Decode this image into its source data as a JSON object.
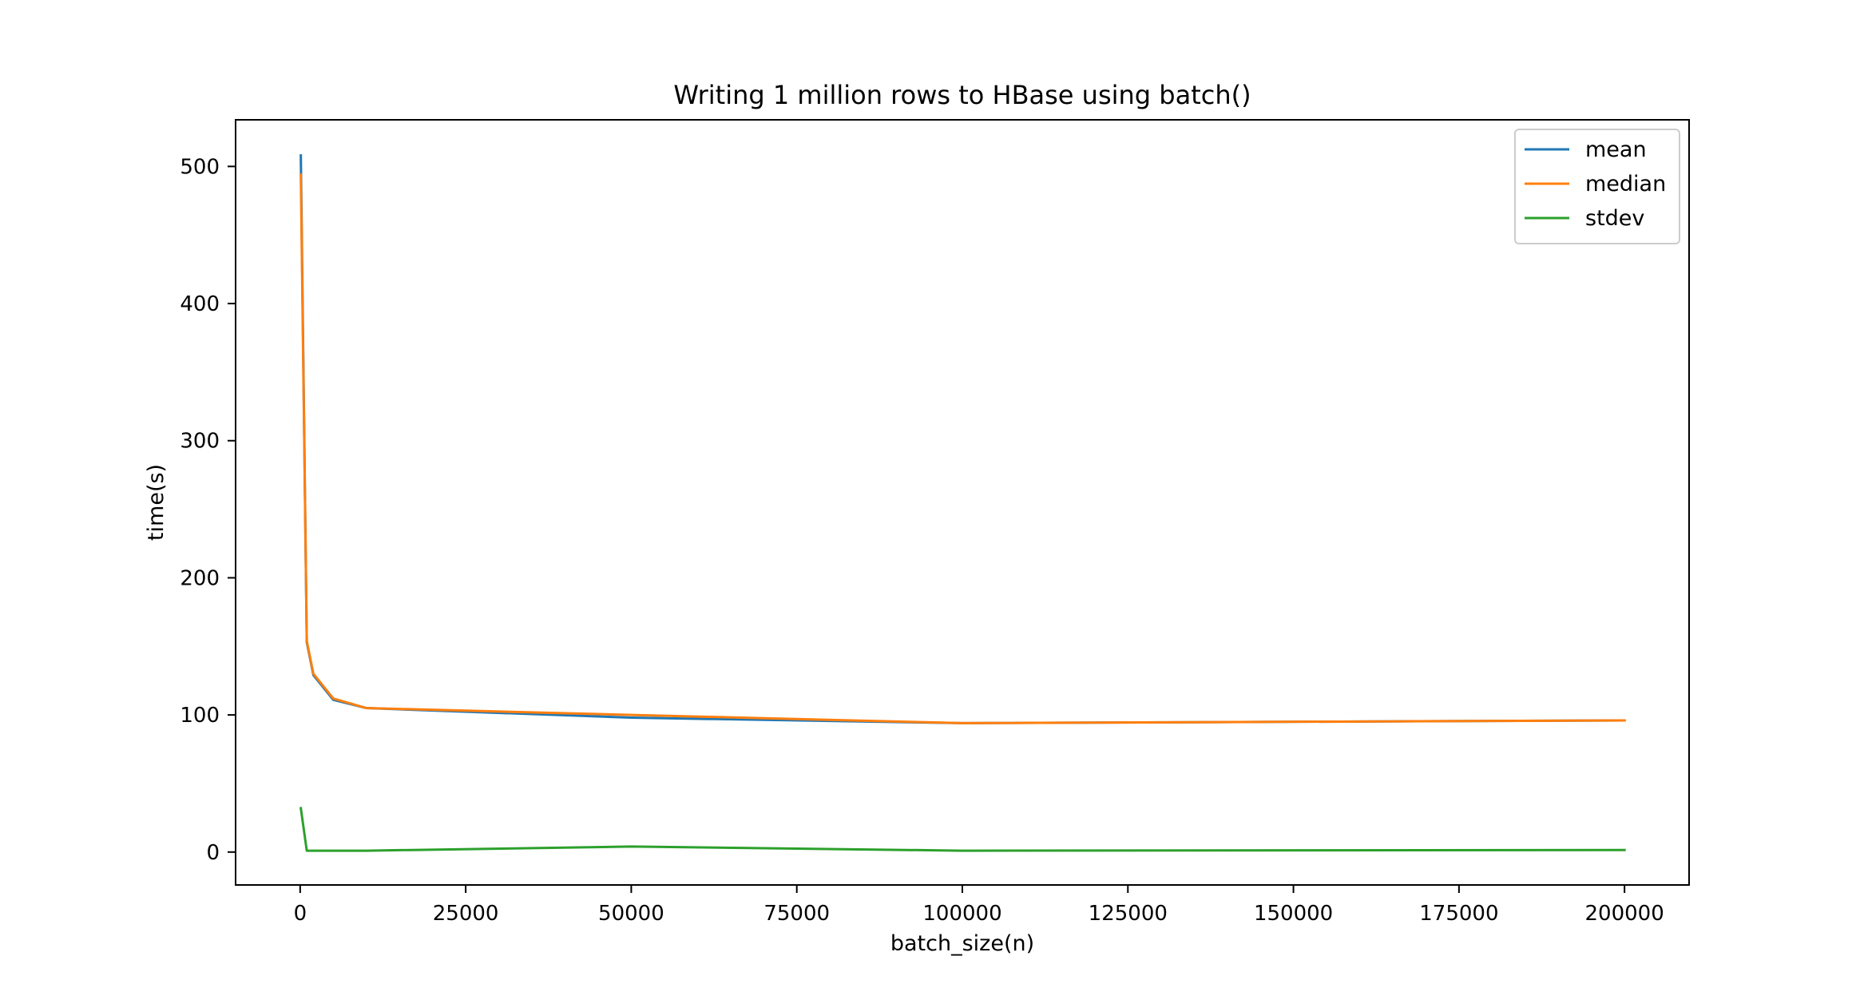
{
  "chart_data": {
    "type": "line",
    "title": "Writing 1 million rows to HBase using batch()",
    "xlabel": "batch_size(n)",
    "ylabel": "time(s)",
    "xlim": [
      -9750,
      209750
    ],
    "ylim": [
      -24,
      534
    ],
    "x_ticks": [
      0,
      25000,
      50000,
      75000,
      100000,
      125000,
      150000,
      175000,
      200000
    ],
    "y_ticks": [
      0,
      100,
      200,
      300,
      400,
      500
    ],
    "grid": false,
    "legend_position": "top-right",
    "x": [
      100,
      1000,
      2000,
      5000,
      10000,
      50000,
      100000,
      200000
    ],
    "series": [
      {
        "name": "mean",
        "color": "#1f77b4",
        "values": [
          508,
          153,
          129,
          111,
          105,
          98,
          94,
          96
        ]
      },
      {
        "name": "median",
        "color": "#ff7f0e",
        "values": [
          494,
          154,
          130,
          112,
          105,
          100,
          94,
          96
        ]
      },
      {
        "name": "stdev",
        "color": "#2ca02c",
        "values": [
          32,
          1,
          1,
          1,
          1,
          4,
          1,
          1.5
        ]
      }
    ]
  }
}
